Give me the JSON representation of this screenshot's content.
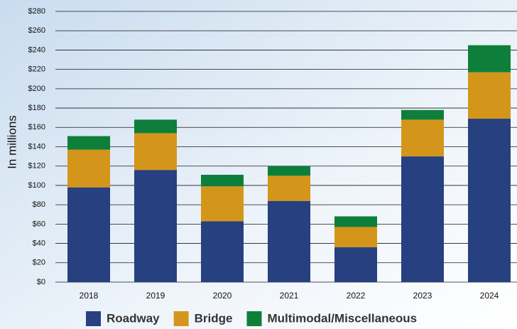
{
  "chart_data": {
    "type": "stacked_bar",
    "y_label": "In millions",
    "categories": [
      "2018",
      "2019",
      "2020",
      "2021",
      "2022",
      "2023",
      "2024"
    ],
    "series": [
      {
        "name": "Roadway",
        "color": "#27407f",
        "values": [
          98,
          116,
          63,
          84,
          36,
          130,
          169
        ]
      },
      {
        "name": "Bridge",
        "color": "#d4961a",
        "values": [
          39,
          38,
          36,
          26,
          21,
          38,
          48
        ]
      },
      {
        "name": "Multimodal/Miscellaneous",
        "color": "#0e7f3a",
        "values": [
          14,
          14,
          12,
          10,
          11,
          10,
          28
        ]
      }
    ],
    "ylim": [
      0,
      280
    ],
    "yticks": [
      {
        "value": 0,
        "label": "$0"
      },
      {
        "value": 20,
        "label": "$20"
      },
      {
        "value": 40,
        "label": "$40"
      },
      {
        "value": 60,
        "label": "$60"
      },
      {
        "value": 80,
        "label": "$80"
      },
      {
        "value": 100,
        "label": "$100"
      },
      {
        "value": 120,
        "label": "$120"
      },
      {
        "value": 140,
        "label": "$140"
      },
      {
        "value": 160,
        "label": "$160"
      },
      {
        "value": 180,
        "label": "$180"
      },
      {
        "value": 200,
        "label": "$200"
      },
      {
        "value": 220,
        "label": "$220"
      },
      {
        "value": 240,
        "label": "$240"
      },
      {
        "value": 260,
        "label": "$260"
      },
      {
        "value": 280,
        "label": "$280"
      }
    ],
    "grid": true,
    "legend": "bottom"
  }
}
